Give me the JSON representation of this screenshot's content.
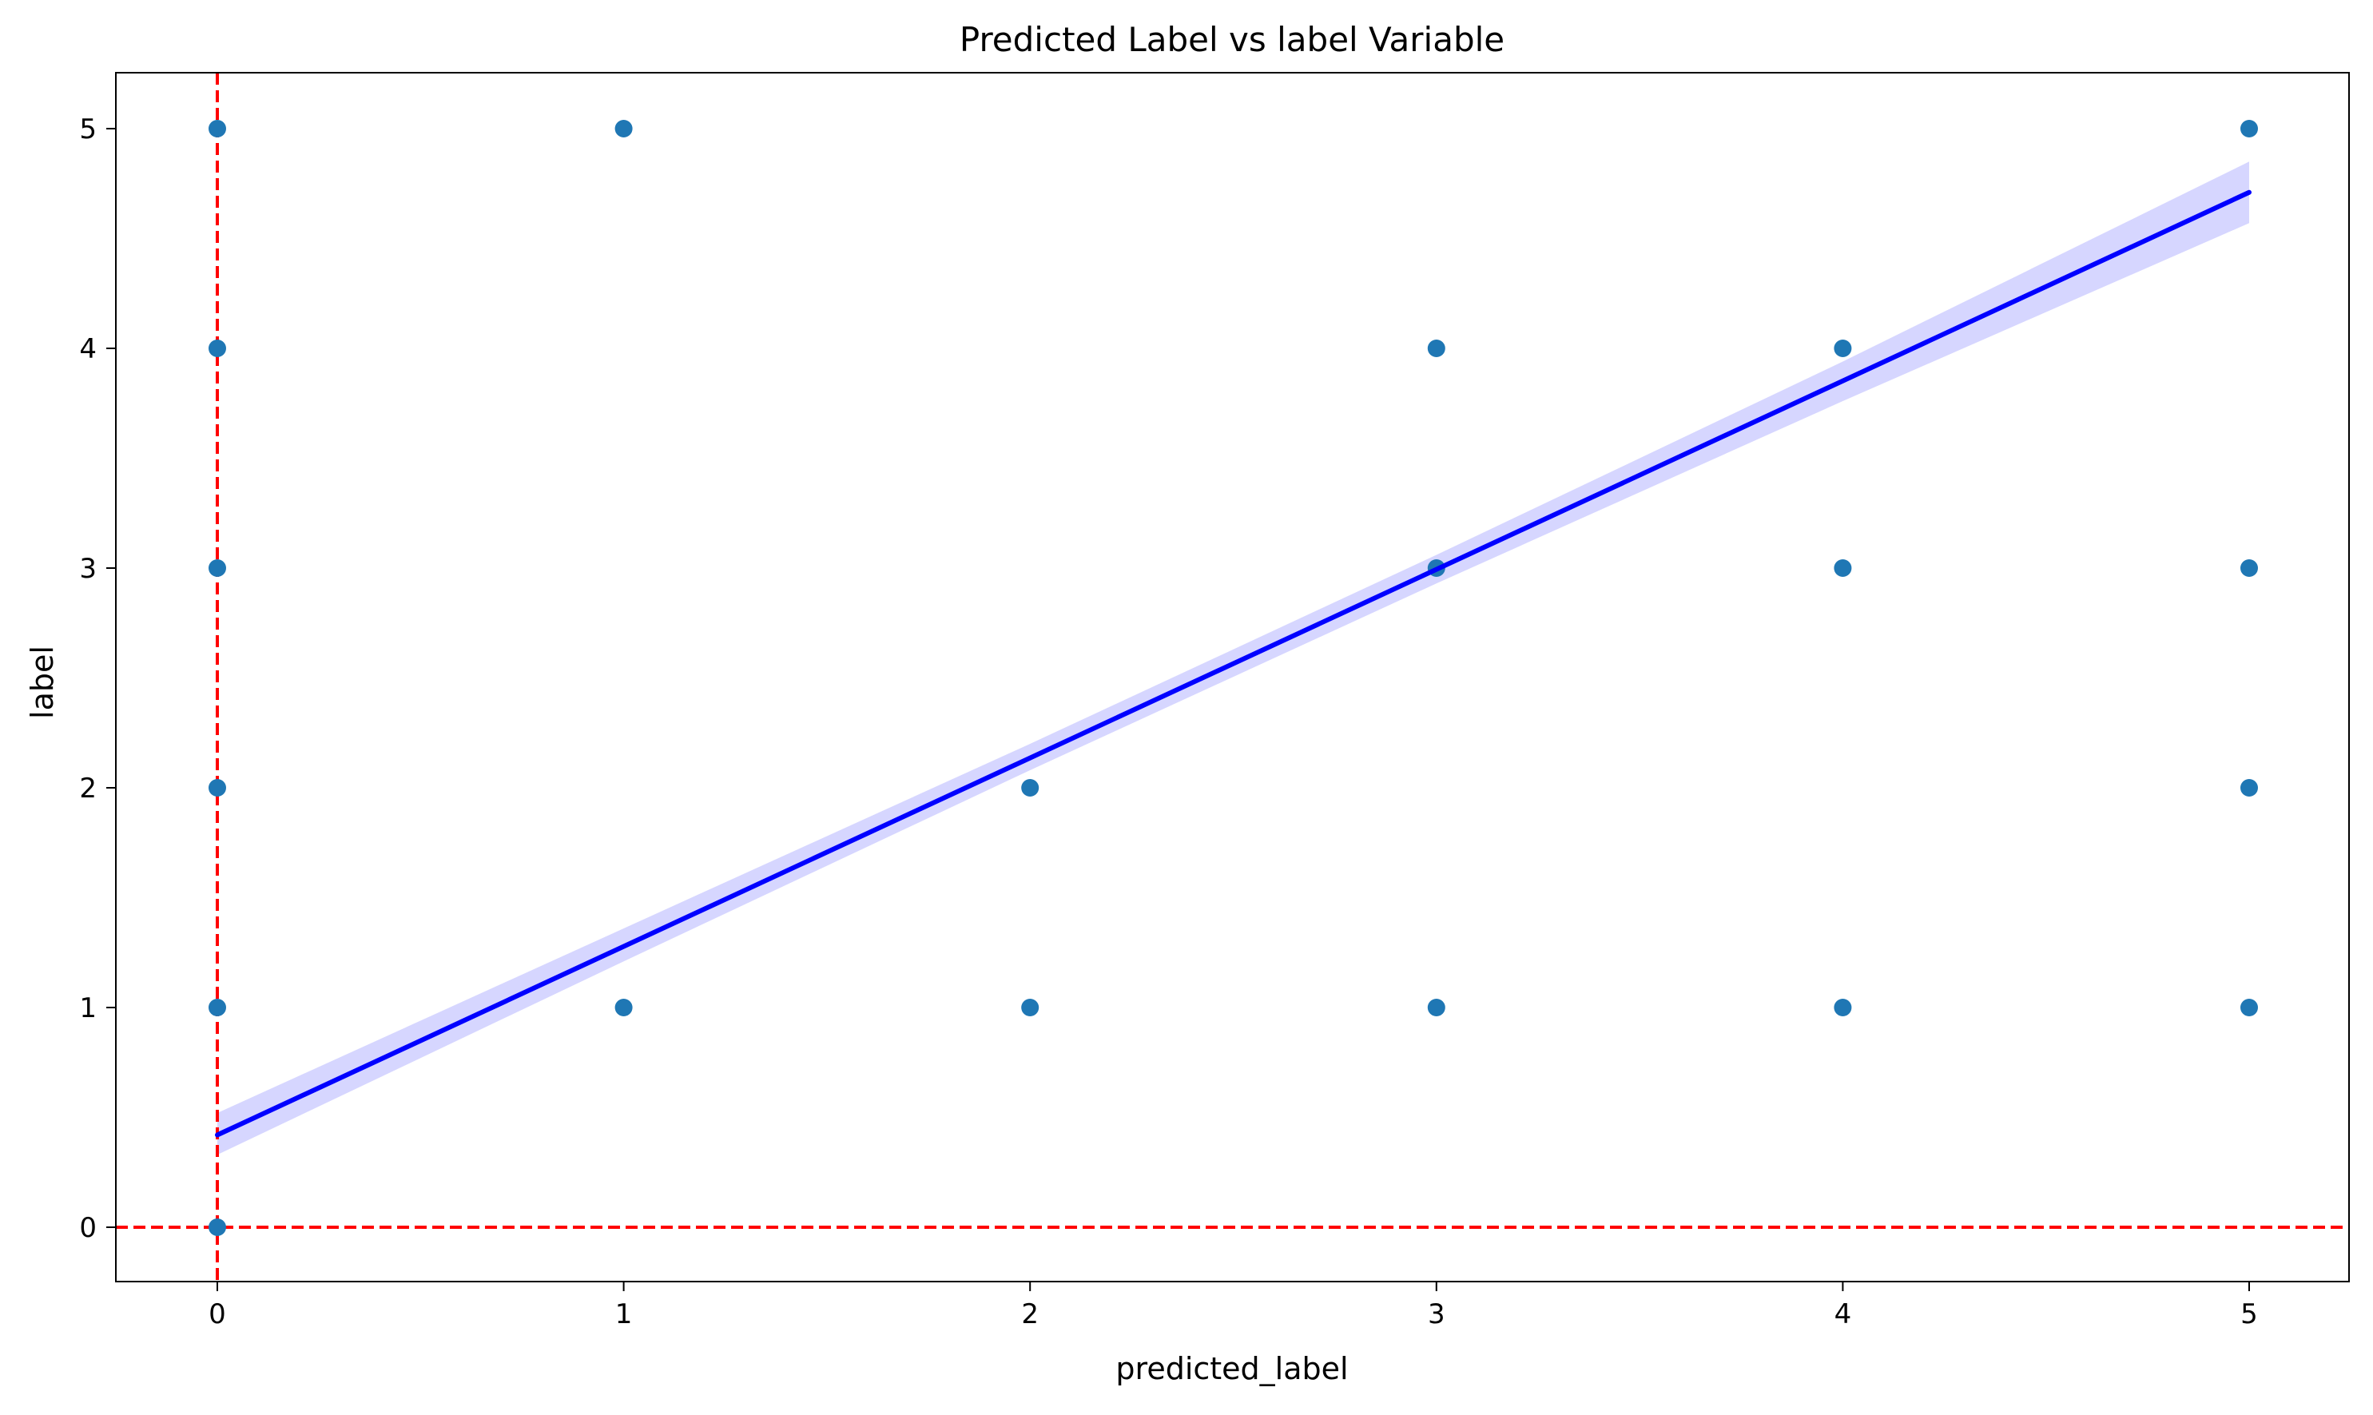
{
  "chart_data": {
    "type": "scatter",
    "title": "Predicted Label vs label Variable",
    "xlabel": "predicted_label",
    "ylabel": "label",
    "xlim": [
      -0.25,
      5.25
    ],
    "ylim": [
      -0.25,
      5.25
    ],
    "xticks": [
      "0",
      "1",
      "2",
      "3",
      "4",
      "5"
    ],
    "yticks": [
      "0",
      "1",
      "2",
      "3",
      "4",
      "5"
    ],
    "grid": false,
    "points": [
      {
        "x": 0,
        "y": 0
      },
      {
        "x": 0,
        "y": 1
      },
      {
        "x": 0,
        "y": 2
      },
      {
        "x": 0,
        "y": 3
      },
      {
        "x": 0,
        "y": 4
      },
      {
        "x": 0,
        "y": 5
      },
      {
        "x": 1,
        "y": 1
      },
      {
        "x": 1,
        "y": 5
      },
      {
        "x": 2,
        "y": 1
      },
      {
        "x": 2,
        "y": 2
      },
      {
        "x": 3,
        "y": 1
      },
      {
        "x": 3,
        "y": 3
      },
      {
        "x": 3,
        "y": 4
      },
      {
        "x": 4,
        "y": 1
      },
      {
        "x": 4,
        "y": 3
      },
      {
        "x": 4,
        "y": 4
      },
      {
        "x": 5,
        "y": 1
      },
      {
        "x": 5,
        "y": 2
      },
      {
        "x": 5,
        "y": 3
      },
      {
        "x": 5,
        "y": 5
      }
    ],
    "regression_line": {
      "x": [
        0,
        5
      ],
      "y": [
        0.42,
        4.71
      ]
    },
    "confidence_band": {
      "x": [
        0,
        1,
        2,
        3,
        4,
        5
      ],
      "lower": [
        0.33,
        1.21,
        2.08,
        2.93,
        3.76,
        4.57
      ],
      "upper": [
        0.52,
        1.36,
        2.2,
        3.06,
        3.94,
        4.85
      ]
    },
    "reference_lines": [
      {
        "orientation": "vertical",
        "value": 0,
        "style": "dashed"
      },
      {
        "orientation": "horizontal",
        "value": 0,
        "style": "dashed"
      }
    ],
    "colors": {
      "points": "#1f77b4",
      "regression": "#0000ff",
      "band": "#d6d6ff",
      "reference": "#ff0000"
    }
  }
}
